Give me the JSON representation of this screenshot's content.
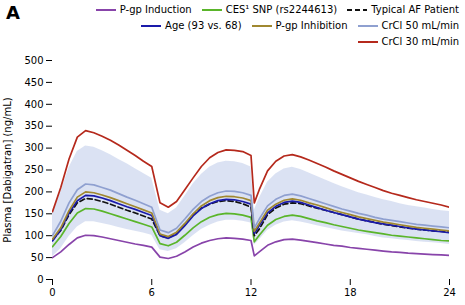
{
  "chart_data": {
    "type": "line",
    "title": "A",
    "ylabel": "Plasma [Dabigatran] (ng/mL)",
    "xlim": [
      0,
      24
    ],
    "ylim": [
      0,
      500
    ],
    "xticks": [
      0,
      6,
      12,
      18,
      24
    ],
    "yticks": [
      0,
      50,
      100,
      150,
      200,
      250,
      300,
      350,
      400,
      450,
      500
    ],
    "grid": false,
    "legend": "upper right",
    "x": [
      0,
      0.5,
      1,
      1.5,
      2,
      2.5,
      3,
      3.5,
      4,
      4.5,
      5,
      5.5,
      6,
      6.5,
      7,
      7.5,
      8,
      8.5,
      9,
      9.5,
      10,
      10.5,
      11,
      11.5,
      12,
      12.2,
      12.5,
      13,
      13.5,
      14,
      14.5,
      15,
      15.5,
      16,
      16.5,
      17,
      17.5,
      18,
      18.5,
      19,
      19.5,
      20,
      20.5,
      21,
      21.5,
      22,
      22.5,
      23,
      23.5,
      24
    ],
    "band": {
      "color": "#b8c5e8",
      "lower": [
        52,
        70,
        98,
        120,
        132,
        132,
        128,
        124,
        119,
        114,
        110,
        106,
        101,
        68,
        64,
        70,
        84,
        100,
        114,
        124,
        131,
        135,
        135,
        133,
        129,
        78,
        90,
        112,
        124,
        131,
        134,
        131,
        127,
        123,
        119,
        115,
        111,
        108,
        105,
        102,
        98,
        95,
        93,
        91,
        89,
        87,
        85,
        84,
        82,
        80
      ],
      "upper": [
        155,
        200,
        255,
        292,
        305,
        302,
        294,
        285,
        274,
        264,
        253,
        242,
        231,
        158,
        150,
        163,
        190,
        218,
        240,
        256,
        266,
        270,
        269,
        265,
        257,
        158,
        185,
        222,
        241,
        252,
        256,
        251,
        243,
        235,
        227,
        219,
        212,
        205,
        198,
        193,
        187,
        182,
        178,
        173,
        169,
        166,
        163,
        160,
        157,
        155
      ]
    },
    "series": [
      {
        "name": "P-gp Induction",
        "color": "#8844aa",
        "line_style": "solid",
        "values": [
          50,
          63,
          80,
          95,
          101,
          100,
          97,
          93,
          89,
          85,
          81,
          78,
          74,
          51,
          48,
          53,
          63,
          74,
          83,
          89,
          93,
          95,
          94,
          92,
          89,
          54,
          63,
          78,
          86,
          91,
          92,
          90,
          87,
          84,
          81,
          78,
          76,
          73,
          71,
          69,
          67,
          65,
          63,
          62,
          60,
          59,
          58,
          57,
          56,
          55
        ]
      },
      {
        "name": "CES¹ SNP (rs2244613)",
        "color": "#5ab52a",
        "line_style": "solid",
        "values": [
          75,
          98,
          128,
          152,
          162,
          161,
          156,
          150,
          144,
          138,
          132,
          126,
          120,
          82,
          77,
          85,
          101,
          118,
          132,
          142,
          148,
          151,
          150,
          147,
          142,
          86,
          101,
          124,
          137,
          144,
          147,
          144,
          139,
          134,
          130,
          125,
          121,
          117,
          113,
          110,
          107,
          104,
          101,
          99,
          97,
          95,
          93,
          91,
          89,
          88
        ]
      },
      {
        "name": "Typical AF Patient",
        "color": "#111111",
        "line_style": "dashed",
        "values": [
          90,
          112,
          148,
          175,
          185,
          183,
          178,
          172,
          165,
          158,
          152,
          145,
          138,
          100,
          95,
          105,
          125,
          148,
          163,
          172,
          178,
          180,
          178,
          173,
          165,
          100,
          115,
          148,
          163,
          172,
          175,
          173,
          168,
          163,
          158,
          153,
          148,
          143,
          138,
          134,
          130,
          126,
          123,
          120,
          117,
          115,
          113,
          111,
          110,
          108
        ]
      },
      {
        "name": "Age (93 vs. 68)",
        "color": "#1a1aaa",
        "line_style": "solid",
        "values": [
          88,
          114,
          152,
          180,
          192,
          191,
          186,
          180,
          173,
          166,
          160,
          153,
          146,
          100,
          94,
          103,
          123,
          145,
          162,
          173,
          180,
          183,
          182,
          178,
          172,
          105,
          123,
          152,
          167,
          176,
          179,
          176,
          170,
          164,
          158,
          153,
          148,
          143,
          138,
          134,
          130,
          127,
          124,
          121,
          118,
          115,
          113,
          111,
          109,
          107
        ]
      },
      {
        "name": "P-gp Inhibition",
        "color": "#a08830",
        "line_style": "solid",
        "values": [
          92,
          118,
          157,
          188,
          200,
          198,
          193,
          187,
          180,
          173,
          166,
          159,
          152,
          104,
          98,
          108,
          128,
          150,
          168,
          180,
          187,
          190,
          189,
          186,
          180,
          110,
          128,
          158,
          172,
          181,
          184,
          181,
          175,
          170,
          164,
          158,
          153,
          148,
          143,
          139,
          135,
          131,
          128,
          125,
          122,
          119,
          117,
          115,
          113,
          111
        ]
      },
      {
        "name": "CrCl 50 mL/min",
        "color": "#8fa0d0",
        "line_style": "solid",
        "values": [
          100,
          133,
          175,
          205,
          218,
          216,
          210,
          204,
          196,
          188,
          181,
          173,
          165,
          113,
          107,
          117,
          138,
          160,
          178,
          190,
          198,
          202,
          201,
          198,
          192,
          118,
          138,
          168,
          183,
          192,
          195,
          191,
          185,
          179,
          173,
          167,
          161,
          156,
          151,
          147,
          142,
          138,
          135,
          132,
          129,
          126,
          124,
          122,
          120,
          118
        ]
      },
      {
        "name": "CrCl 30 mL/min",
        "color": "#b5291c",
        "line_style": "solid",
        "values": [
          155,
          210,
          275,
          325,
          340,
          335,
          327,
          318,
          307,
          295,
          283,
          270,
          258,
          175,
          165,
          178,
          205,
          232,
          258,
          278,
          290,
          296,
          295,
          292,
          283,
          175,
          205,
          248,
          270,
          282,
          285,
          280,
          273,
          265,
          257,
          248,
          240,
          232,
          224,
          217,
          210,
          203,
          197,
          192,
          187,
          182,
          178,
          174,
          170,
          165
        ]
      }
    ]
  }
}
